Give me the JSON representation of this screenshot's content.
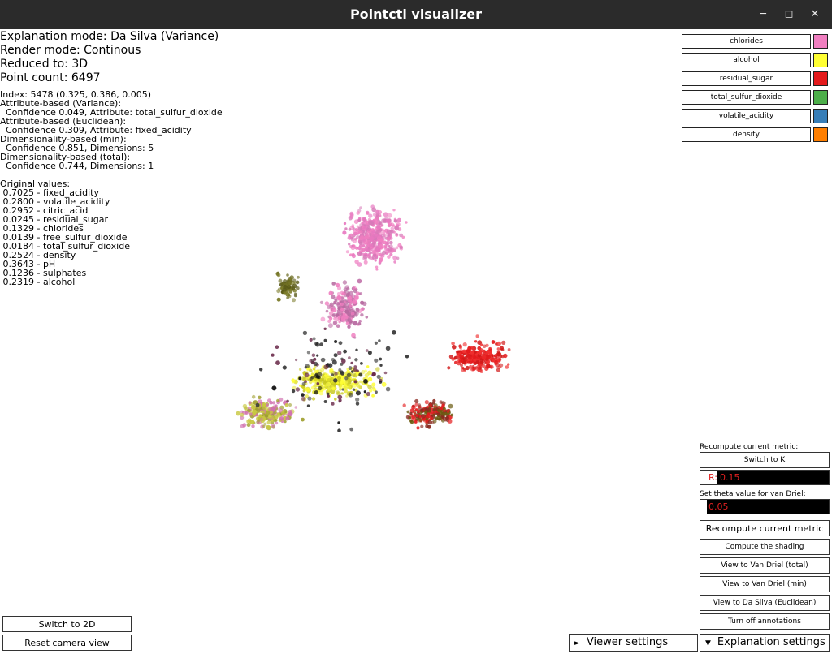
{
  "window": {
    "title": "Pointctl visualizer"
  },
  "status": {
    "explanation_mode": "Explanation mode: Da Silva (Variance)",
    "render_mode": "Render mode: Continous",
    "reduced_to": "Reduced to: 3D",
    "point_count": "Point count: 6497"
  },
  "selection": {
    "index": "Index: 5478 (0.325, 0.386, 0.005)",
    "lines": [
      "Attribute-based (Variance):",
      "  Confidence 0.049, Attribute: total_sulfur_dioxide",
      "Attribute-based (Euclidean):",
      "  Confidence 0.309, Attribute: fixed_acidity",
      "Dimensionality-based (min):",
      "  Confidence 0.851, Dimensions: 5",
      "Dimensionality-based (total):",
      "  Confidence 0.744, Dimensions: 1"
    ],
    "original_values_label": "Original values:",
    "original_values": [
      " 0.7025 - fixed_acidity",
      " 0.2800 - volatile_acidity",
      " 0.2952 - citric_acid",
      " 0.0245 - residual_sugar",
      " 0.1329 - chlorides",
      " 0.0139 - free_sulfur_dioxide",
      " 0.0184 - total_sulfur_dioxide",
      " 0.2524 - density",
      " 0.3643 - pH",
      " 0.1236 - sulphates",
      " 0.2319 - alcohol"
    ]
  },
  "legend": [
    {
      "label": "chlorides",
      "color": "#f07ec0"
    },
    {
      "label": "alcohol",
      "color": "#ffff33"
    },
    {
      "label": "residual_sugar",
      "color": "#e41a1c"
    },
    {
      "label": "total_sulfur_dioxide",
      "color": "#4daf4a"
    },
    {
      "label": "volatile_acidity",
      "color": "#377eb8"
    },
    {
      "label": "density",
      "color": "#ff7f00"
    }
  ],
  "controls": {
    "recompute_label": "Recompute current metric:",
    "switch_to_k": "Switch to K",
    "r_prefix": "R:",
    "r_value": "0.15",
    "theta_label": "Set theta value for van Driel:",
    "theta_value": "0.05",
    "recompute_button": "Recompute current metric",
    "compute_shading": "Compute the shading",
    "view_van_driel_total": "View to Van Driel (total)",
    "view_van_driel_min": "View to Van Driel (min)",
    "view_da_silva_euclidean": "View to Da Silva (Euclidean)",
    "turn_off_annotations": "Turn off annotations"
  },
  "bottom": {
    "switch_2d": "Switch to 2D",
    "reset_camera": "Reset camera view",
    "viewer_settings": "Viewer settings",
    "explanation_settings": "Explanation settings"
  }
}
